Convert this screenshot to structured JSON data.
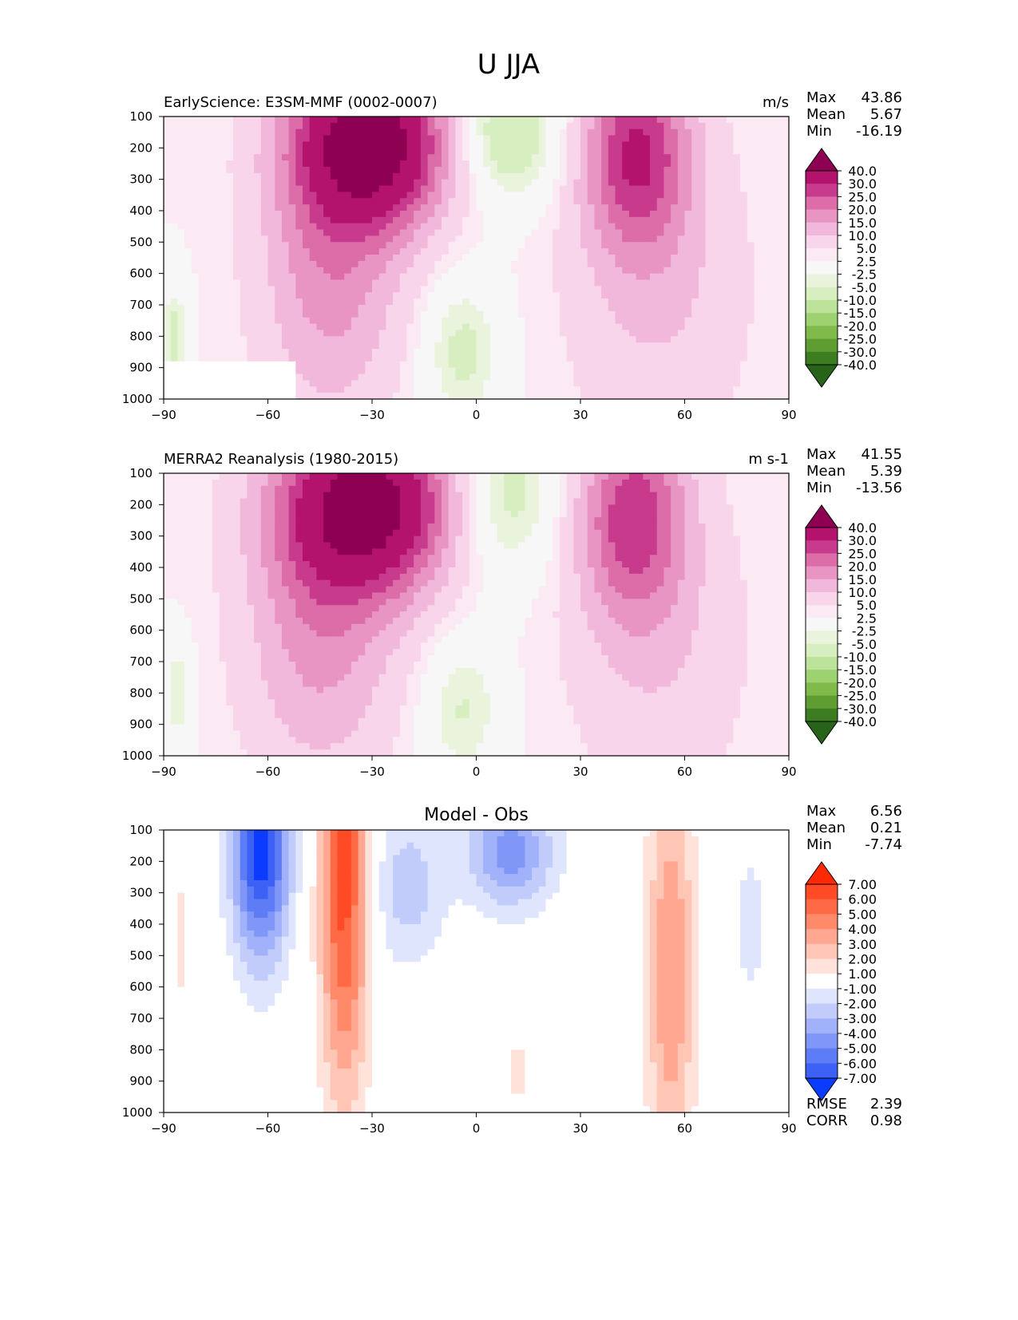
{
  "figure_title": "U JJA",
  "chart_data": [
    {
      "type": "heatmap",
      "title": "EarlyScience: E3SM-MMF (0002-0007)",
      "units": "m/s",
      "x": [
        -90,
        -60,
        -30,
        0,
        30,
        60,
        90
      ],
      "y": [
        100,
        200,
        300,
        400,
        500,
        600,
        700,
        800,
        900,
        1000
      ],
      "xlim": [
        -90,
        90
      ],
      "ylim": [
        1000,
        100
      ],
      "stats": [
        {
          "label": "Max",
          "value": "43.86"
        },
        {
          "label": "Mean",
          "value": "5.67"
        },
        {
          "label": "Min",
          "value": "-16.19"
        }
      ],
      "colorbar": [
        "40.0",
        "30.0",
        "25.0",
        "20.0",
        "15.0",
        "10.0",
        "5.0",
        "2.5",
        "-2.5",
        "-5.0",
        "-10.0",
        "-15.0",
        "-20.0",
        "-25.0",
        "-30.0",
        "-40.0"
      ],
      "colorbar_colors": [
        "#8e0152",
        "#b4136d",
        "#c73a8c",
        "#dc6da9",
        "#e995c4",
        "#f2b8db",
        "#f8d5ea",
        "#fbeaf3",
        "#f7f7f7",
        "#eaf4dd",
        "#d7efc0",
        "#bde39a",
        "#9ed170",
        "#7fba4a",
        "#5f9c32",
        "#3d7d22",
        "#276419"
      ],
      "field": "nh_sh_jets_model"
    },
    {
      "type": "heatmap",
      "title": "MERRA2 Reanalysis (1980-2015)",
      "units": "m s-1",
      "x": [
        -90,
        -60,
        -30,
        0,
        30,
        60,
        90
      ],
      "y": [
        100,
        200,
        300,
        400,
        500,
        600,
        700,
        800,
        900,
        1000
      ],
      "xlim": [
        -90,
        90
      ],
      "ylim": [
        1000,
        100
      ],
      "stats": [
        {
          "label": "Max",
          "value": "41.55"
        },
        {
          "label": "Mean",
          "value": "5.39"
        },
        {
          "label": "Min",
          "value": "-13.56"
        }
      ],
      "colorbar": [
        "40.0",
        "30.0",
        "25.0",
        "20.0",
        "15.0",
        "10.0",
        "5.0",
        "2.5",
        "-2.5",
        "-5.0",
        "-10.0",
        "-15.0",
        "-20.0",
        "-25.0",
        "-30.0",
        "-40.0"
      ],
      "colorbar_colors": [
        "#8e0152",
        "#b4136d",
        "#c73a8c",
        "#dc6da9",
        "#e995c4",
        "#f2b8db",
        "#f8d5ea",
        "#fbeaf3",
        "#f7f7f7",
        "#eaf4dd",
        "#d7efc0",
        "#bde39a",
        "#9ed170",
        "#7fba4a",
        "#5f9c32",
        "#3d7d22",
        "#276419"
      ],
      "field": "nh_sh_jets_obs"
    },
    {
      "type": "heatmap",
      "title": "Model - Obs",
      "units": "",
      "x": [
        -90,
        -60,
        -30,
        0,
        30,
        60,
        90
      ],
      "y": [
        100,
        200,
        300,
        400,
        500,
        600,
        700,
        800,
        900,
        1000
      ],
      "xlim": [
        -90,
        90
      ],
      "ylim": [
        1000,
        100
      ],
      "stats": [
        {
          "label": "Max",
          "value": "6.56"
        },
        {
          "label": "Mean",
          "value": "0.21"
        },
        {
          "label": "Min",
          "value": "-7.74"
        }
      ],
      "metrics": [
        {
          "label": "RMSE",
          "value": "2.39"
        },
        {
          "label": "CORR",
          "value": "0.98"
        }
      ],
      "colorbar": [
        "7.00",
        "6.00",
        "5.00",
        "4.00",
        "3.00",
        "2.00",
        "1.00",
        "-1.00",
        "-2.00",
        "-3.00",
        "-4.00",
        "-5.00",
        "-6.00",
        "-7.00"
      ],
      "colorbar_colors": [
        "#ff2a05",
        "#ff4b25",
        "#ff6a46",
        "#ff8a6a",
        "#ffa790",
        "#ffc6b6",
        "#ffe2da",
        "#ffffff",
        "#dfe5fd",
        "#c1ccfb",
        "#a1b2fa",
        "#8197f8",
        "#5f7cf7",
        "#3d61f5",
        "#0a3bff"
      ],
      "field": "diff"
    }
  ]
}
